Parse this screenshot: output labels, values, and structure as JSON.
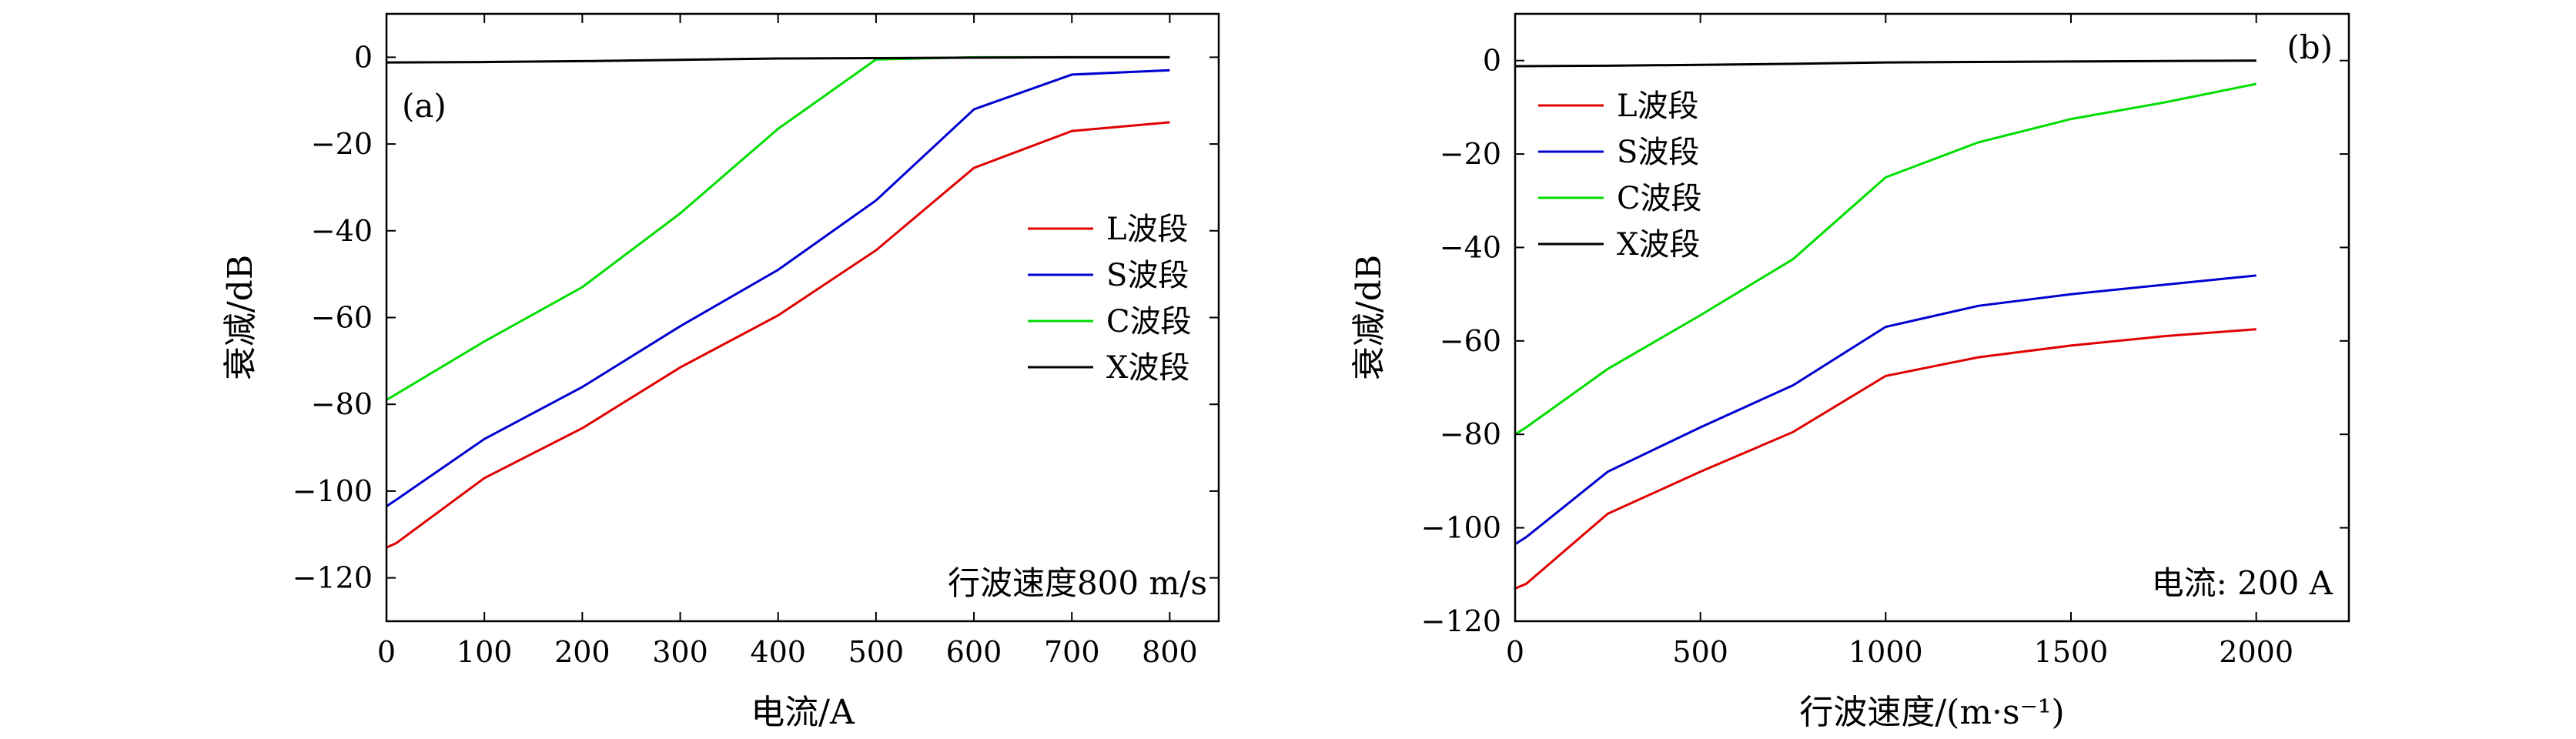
{
  "chart_data": [
    {
      "type": "line",
      "panel_label": "(a)",
      "xlabel": "电流/A",
      "ylabel": "衰减/dB",
      "xlim": [
        0,
        850
      ],
      "ylim": [
        -130,
        10
      ],
      "xticks": [
        0,
        100,
        200,
        300,
        400,
        500,
        600,
        700,
        800
      ],
      "yticks": [
        0,
        -20,
        -40,
        -60,
        -80,
        -100,
        -120
      ],
      "annotation": "行波速度800 m/s",
      "legend_position": "center-right",
      "series": [
        {
          "name": "L波段",
          "color": "#e00000",
          "x": [
            0,
            10,
            100,
            200,
            300,
            400,
            500,
            600,
            700,
            800
          ],
          "y": [
            -113,
            -112,
            -97,
            -85.5,
            -71.5,
            -59.5,
            -44.5,
            -25.5,
            -17,
            -15
          ]
        },
        {
          "name": "S波段",
          "color": "#0000d0",
          "x": [
            0,
            10,
            100,
            200,
            300,
            400,
            500,
            600,
            700,
            800
          ],
          "y": [
            -103.5,
            -102,
            -88,
            -76,
            -62,
            -49,
            -33,
            -12,
            -4,
            -3
          ]
        },
        {
          "name": "C波段",
          "color": "#00dd00",
          "x": [
            0,
            100,
            200,
            300,
            400,
            500,
            600,
            700,
            800
          ],
          "y": [
            -79,
            -65.5,
            -53,
            -36,
            -16.5,
            -0.5,
            0,
            0,
            0
          ]
        },
        {
          "name": "X波段",
          "color": "#000000",
          "x": [
            0,
            100,
            200,
            300,
            400,
            500,
            600,
            700,
            800
          ],
          "y": [
            -1.2,
            -1.1,
            -0.9,
            -0.6,
            -0.3,
            -0.2,
            -0.1,
            0,
            0
          ]
        }
      ]
    },
    {
      "type": "line",
      "panel_label": "(b)",
      "xlabel": "行波速度/(m·s⁻¹)",
      "ylabel": "衰减/dB",
      "xlim": [
        0,
        2250
      ],
      "ylim": [
        -120,
        10
      ],
      "xticks": [
        0,
        500,
        1000,
        1500,
        2000
      ],
      "yticks": [
        0,
        -20,
        -40,
        -60,
        -80,
        -100,
        -120
      ],
      "annotation": "电流: 200 A",
      "legend_position": "top-left",
      "series": [
        {
          "name": "L波段",
          "color": "#e00000",
          "x": [
            0,
            30,
            250,
            500,
            750,
            1000,
            1250,
            1500,
            1750,
            2000
          ],
          "y": [
            -113,
            -112,
            -97,
            -88,
            -79.5,
            -67.5,
            -63.5,
            -61,
            -59,
            -57.5
          ]
        },
        {
          "name": "S波段",
          "color": "#0000d0",
          "x": [
            0,
            30,
            250,
            500,
            750,
            1000,
            1250,
            1500,
            1750,
            2000
          ],
          "y": [
            -103.5,
            -102,
            -88,
            -78.5,
            -69.5,
            -57,
            -52.5,
            -50,
            -48,
            -46
          ]
        },
        {
          "name": "C波段",
          "color": "#00dd00",
          "x": [
            0,
            30,
            250,
            500,
            750,
            1000,
            1250,
            1500,
            1750,
            2000
          ],
          "y": [
            -80,
            -78.5,
            -66,
            -54.5,
            -42.5,
            -25,
            -17.5,
            -12.5,
            -9,
            -5
          ]
        },
        {
          "name": "X波段",
          "color": "#000000",
          "x": [
            0,
            250,
            500,
            750,
            1000,
            1250,
            1500,
            1750,
            2000
          ],
          "y": [
            -1.2,
            -1.1,
            -0.9,
            -0.7,
            -0.4,
            -0.3,
            -0.2,
            -0.1,
            0
          ]
        }
      ]
    }
  ]
}
